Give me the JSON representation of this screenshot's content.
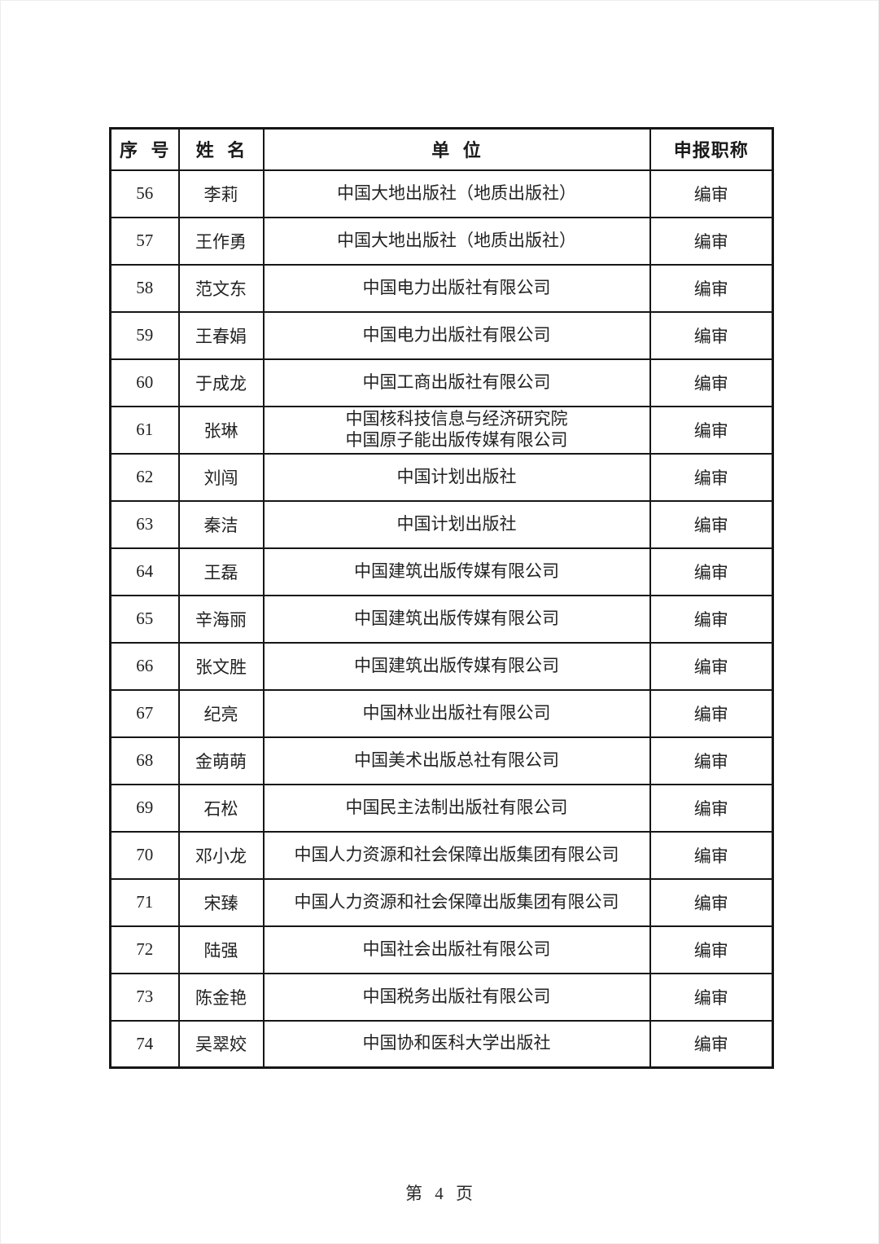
{
  "table": {
    "headers": [
      "序 号",
      "姓 名",
      "单 位",
      "申报职称"
    ],
    "rows": [
      {
        "no": "56",
        "name": "李莉",
        "unit": "中国大地出版社（地质出版社）",
        "title": "编审"
      },
      {
        "no": "57",
        "name": "王作勇",
        "unit": "中国大地出版社（地质出版社）",
        "title": "编审"
      },
      {
        "no": "58",
        "name": "范文东",
        "unit": "中国电力出版社有限公司",
        "title": "编审"
      },
      {
        "no": "59",
        "name": "王春娟",
        "unit": "中国电力出版社有限公司",
        "title": "编审"
      },
      {
        "no": "60",
        "name": "于成龙",
        "unit": "中国工商出版社有限公司",
        "title": "编审"
      },
      {
        "no": "61",
        "name": "张琳",
        "unit": "中国核科技信息与经济研究院\n中国原子能出版传媒有限公司",
        "title": "编审"
      },
      {
        "no": "62",
        "name": "刘闯",
        "unit": "中国计划出版社",
        "title": "编审"
      },
      {
        "no": "63",
        "name": "秦洁",
        "unit": "中国计划出版社",
        "title": "编审"
      },
      {
        "no": "64",
        "name": "王磊",
        "unit": "中国建筑出版传媒有限公司",
        "title": "编审"
      },
      {
        "no": "65",
        "name": "辛海丽",
        "unit": "中国建筑出版传媒有限公司",
        "title": "编审"
      },
      {
        "no": "66",
        "name": "张文胜",
        "unit": "中国建筑出版传媒有限公司",
        "title": "编审"
      },
      {
        "no": "67",
        "name": "纪亮",
        "unit": "中国林业出版社有限公司",
        "title": "编审"
      },
      {
        "no": "68",
        "name": "金萌萌",
        "unit": "中国美术出版总社有限公司",
        "title": "编审"
      },
      {
        "no": "69",
        "name": "石松",
        "unit": "中国民主法制出版社有限公司",
        "title": "编审"
      },
      {
        "no": "70",
        "name": "邓小龙",
        "unit": "中国人力资源和社会保障出版集团有限公司",
        "title": "编审"
      },
      {
        "no": "71",
        "name": "宋臻",
        "unit": "中国人力资源和社会保障出版集团有限公司",
        "title": "编审"
      },
      {
        "no": "72",
        "name": "陆强",
        "unit": "中国社会出版社有限公司",
        "title": "编审"
      },
      {
        "no": "73",
        "name": "陈金艳",
        "unit": "中国税务出版社有限公司",
        "title": "编审"
      },
      {
        "no": "74",
        "name": "吴翠姣",
        "unit": "中国协和医科大学出版社",
        "title": "编审"
      }
    ]
  },
  "footer": {
    "page_label": "第 4 页"
  }
}
